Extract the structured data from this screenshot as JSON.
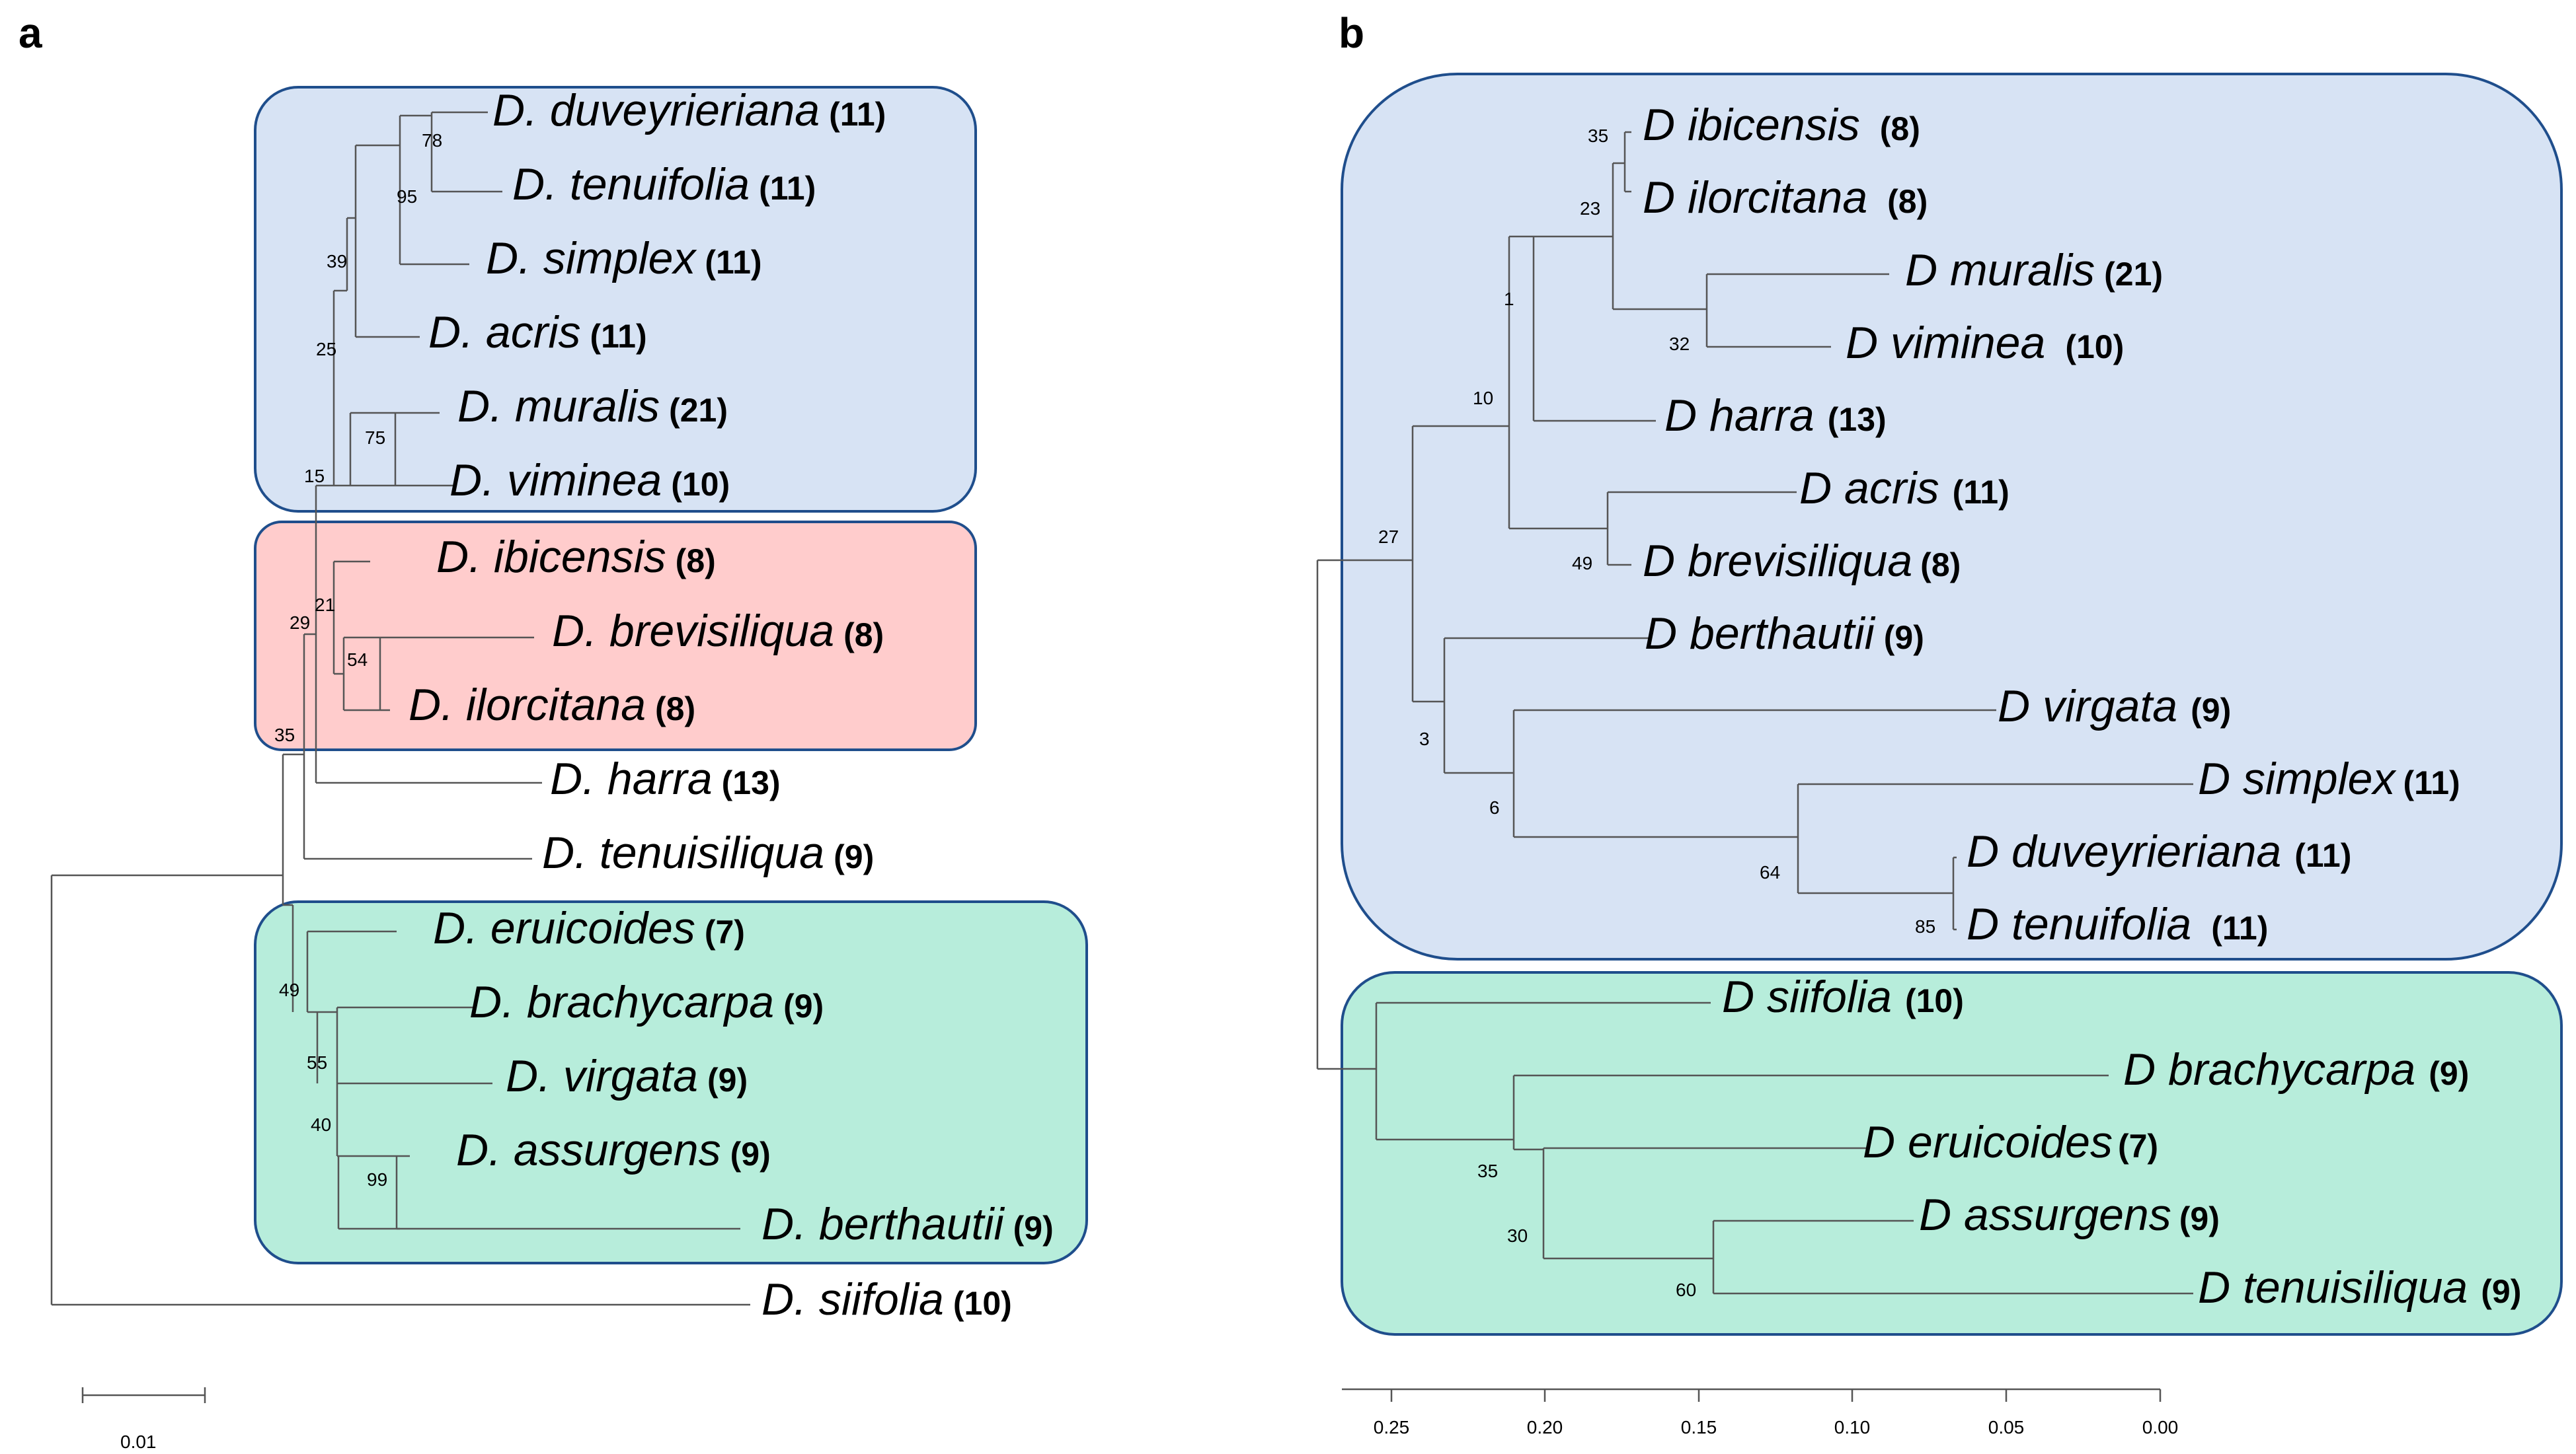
{
  "panels": {
    "a": {
      "label": "a",
      "scale_label": "0.01",
      "group_colors": {
        "blue": "#d7e3f4",
        "red": "#ffcccc",
        "green": "#b7eddb",
        "border": "#1f4e8c"
      },
      "taxa": [
        {
          "name": "D. duveyrieriana",
          "count": "(11)"
        },
        {
          "name": "D. tenuifolia",
          "count": "(11)"
        },
        {
          "name": "D. simplex",
          "count": "(11)"
        },
        {
          "name": "D. acris",
          "count": "(11)"
        },
        {
          "name": "D. muralis",
          "count": "(21)"
        },
        {
          "name": "D. viminea",
          "count": "(10)"
        },
        {
          "name": "D. ibicensis",
          "count": "(8)"
        },
        {
          "name": "D. brevisiliqua",
          "count": "(8)"
        },
        {
          "name": "D. ilorcitana",
          "count": "(8)"
        },
        {
          "name": "D. harra",
          "count": "(13)"
        },
        {
          "name": "D. tenuisiliqua",
          "count": "(9)"
        },
        {
          "name": "D. eruicoides",
          "count": "(7)"
        },
        {
          "name": "D. brachycarpa",
          "count": "(9)"
        },
        {
          "name": "D. virgata",
          "count": "(9)"
        },
        {
          "name": "D. assurgens",
          "count": "(9)"
        },
        {
          "name": "D. berthautii",
          "count": "(9)"
        },
        {
          "name": "D. siifolia",
          "count": "(10)"
        }
      ],
      "bootstrap": [
        "78",
        "95",
        "39",
        "25",
        "75",
        "15",
        "21",
        "29",
        "54",
        "35",
        "49",
        "55",
        "40",
        "99"
      ]
    },
    "b": {
      "label": "b",
      "axis_ticks": [
        "0.25",
        "0.20",
        "0.15",
        "0.10",
        "0.05",
        "0.00"
      ],
      "taxa": [
        {
          "name": "D ibicensis",
          "count": "(8)"
        },
        {
          "name": "D ilorcitana",
          "count": "(8)"
        },
        {
          "name": "D muralis",
          "count": "(21)"
        },
        {
          "name": "D viminea",
          "count": "(10)"
        },
        {
          "name": "D harra",
          "count": "(13)"
        },
        {
          "name": "D acris",
          "count": "(11)"
        },
        {
          "name": "D brevisiliqua",
          "count": "(8)"
        },
        {
          "name": "D berthautii",
          "count": "(9)"
        },
        {
          "name": "D virgata",
          "count": "(9)"
        },
        {
          "name": "D simplex",
          "count": "(11)"
        },
        {
          "name": "D duveyrieriana",
          "count": "(11)"
        },
        {
          "name": "D tenuifolia",
          "count": "(11)"
        },
        {
          "name": "D siifolia",
          "count": "(10)"
        },
        {
          "name": "D brachycarpa",
          "count": "(9)"
        },
        {
          "name": "D eruicoides",
          "count": "(7)"
        },
        {
          "name": "D assurgens",
          "count": "(9)"
        },
        {
          "name": "D tenuisiliqua",
          "count": "(9)"
        }
      ],
      "bootstrap": [
        "35",
        "23",
        "1",
        "32",
        "10",
        "27",
        "49",
        "3",
        "6",
        "64",
        "85",
        "35",
        "30",
        "60"
      ]
    }
  }
}
